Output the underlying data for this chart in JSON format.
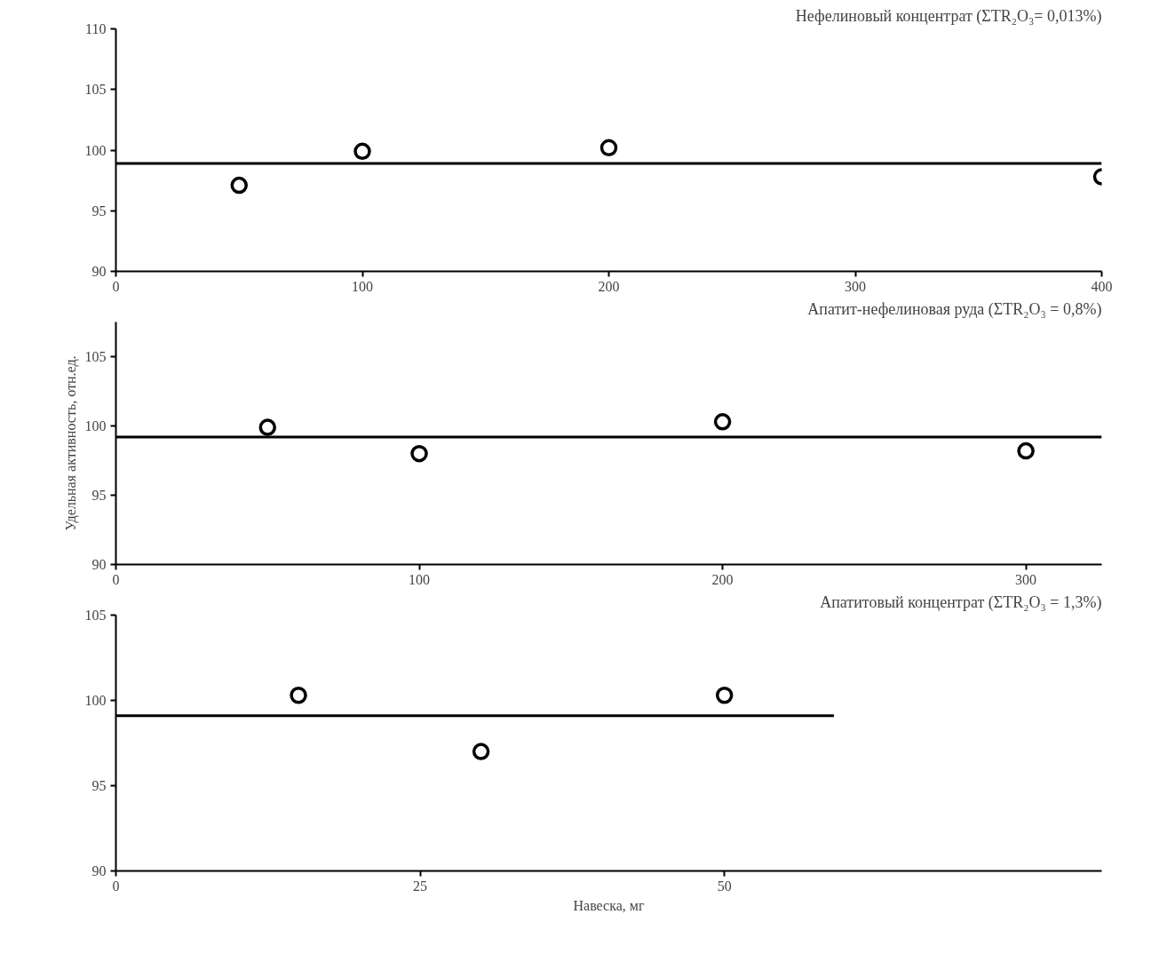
{
  "chart_data": [
    {
      "type": "scatter",
      "title": "Нефелиновый концентрат (ΣTR₂O₃= 0,013%)",
      "grid": false,
      "xlim": [
        0,
        400
      ],
      "xticks": [
        0,
        100,
        200,
        300,
        400
      ],
      "ylim": [
        90,
        110
      ],
      "yticks": [
        90,
        95,
        100,
        105,
        110
      ],
      "series": [
        {
          "marker": "circle",
          "color": "#000000",
          "x": [
            50,
            100,
            200,
            400
          ],
          "values": [
            97.1,
            99.9,
            100.2,
            97.8
          ]
        },
        {
          "type": "line",
          "color": "#000000",
          "x": [
            0,
            400
          ],
          "values": [
            98.9,
            98.9
          ]
        }
      ]
    },
    {
      "type": "scatter",
      "title": "Апатит-нефелиновая руда (ΣTR₂O₃ = 0,8%)",
      "ylabel": "Удельная активность, отн.ед.",
      "grid": false,
      "xlim": [
        0,
        325
      ],
      "xticks": [
        0,
        100,
        200,
        300
      ],
      "ylim": [
        90,
        107.5
      ],
      "yticks": [
        90,
        95,
        100,
        105
      ],
      "series": [
        {
          "marker": "circle",
          "color": "#000000",
          "x": [
            50,
            100,
            200,
            300
          ],
          "values": [
            99.9,
            98.0,
            100.3,
            98.2
          ]
        },
        {
          "type": "line",
          "color": "#000000",
          "x": [
            0,
            325
          ],
          "values": [
            99.2,
            99.2
          ]
        }
      ]
    },
    {
      "type": "scatter",
      "title": "Апатитовый концентрат (ΣTR₂O₃ = 1,3%)",
      "xlabel": "Навеска, мг",
      "grid": false,
      "xlim": [
        0,
        81
      ],
      "xticks": [
        0,
        25,
        50
      ],
      "ylim": [
        90,
        105
      ],
      "yticks": [
        90,
        95,
        100,
        105
      ],
      "series": [
        {
          "marker": "circle",
          "color": "#000000",
          "x": [
            15,
            30,
            50
          ],
          "values": [
            100.3,
            97.0,
            100.3
          ]
        },
        {
          "type": "line",
          "color": "#000000",
          "x": [
            0,
            59
          ],
          "values": [
            99.1,
            99.1
          ]
        }
      ]
    }
  ]
}
